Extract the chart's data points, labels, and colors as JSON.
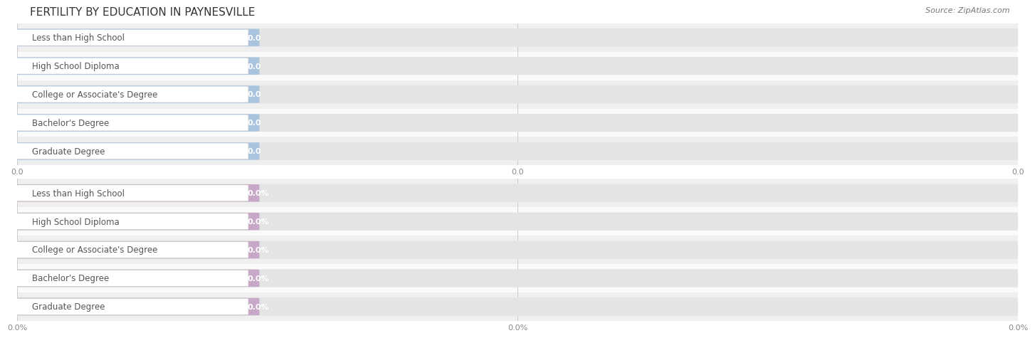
{
  "title": "FERTILITY BY EDUCATION IN PAYNESVILLE",
  "source": "Source: ZipAtlas.com",
  "background_color": "#ffffff",
  "categories": [
    "Less than High School",
    "High School Diploma",
    "College or Associate's Degree",
    "Bachelor's Degree",
    "Graduate Degree"
  ],
  "top_values": [
    0.0,
    0.0,
    0.0,
    0.0,
    0.0
  ],
  "bottom_values": [
    0.0,
    0.0,
    0.0,
    0.0,
    0.0
  ],
  "top_bar_color": "#aac4e0",
  "bottom_bar_color": "#c8a8c8",
  "top_value_label_color": "#ffffff",
  "bottom_value_label_color": "#c060c0",
  "x_tick_labels_top": [
    "0.0",
    "0.0",
    "0.0"
  ],
  "x_tick_labels_bottom": [
    "0.0%",
    "0.0%",
    "0.0%"
  ],
  "title_fontsize": 11,
  "label_fontsize": 8.5,
  "value_fontsize": 8,
  "source_fontsize": 8,
  "row_bg_even": "#efefef",
  "row_bg_odd": "#fafafa",
  "label_text_color": "#555555",
  "tick_color": "#888888",
  "grid_color": "#cccccc"
}
